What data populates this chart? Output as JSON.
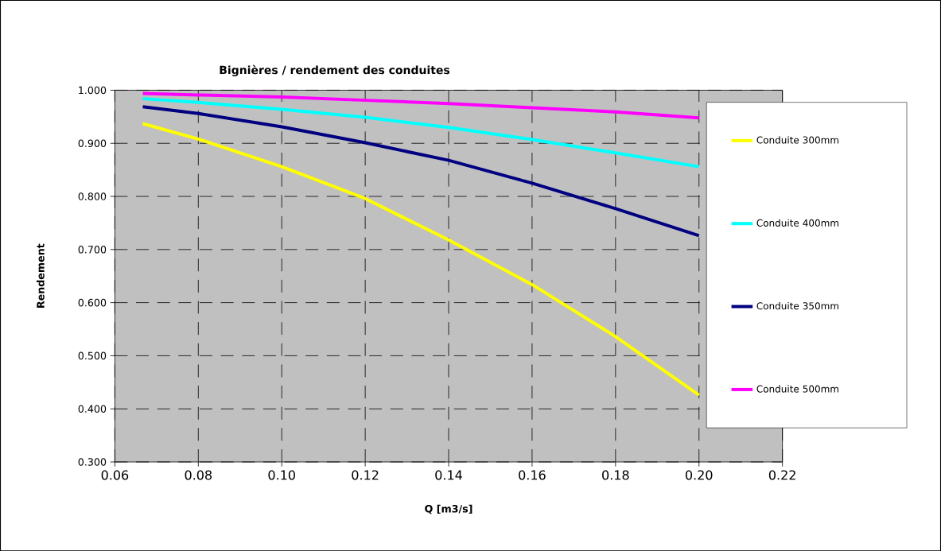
{
  "chart_data": {
    "type": "line",
    "title": "Bignières / rendement des conduites",
    "xlabel": "Q [m3/s]",
    "ylabel": "Rendement",
    "x": [
      0.0667,
      0.08,
      0.1,
      0.12,
      0.14,
      0.16,
      0.18,
      0.2
    ],
    "series": [
      {
        "name": "Conduite 300mm",
        "color": "#ffff00",
        "values": [
          0.937,
          0.908,
          0.856,
          0.796,
          0.718,
          0.634,
          0.536,
          0.426
        ]
      },
      {
        "name": "Conduite 400mm",
        "color": "#00ffff",
        "values": [
          0.984,
          0.977,
          0.964,
          0.949,
          0.93,
          0.907,
          0.882,
          0.856
        ]
      },
      {
        "name": "Conduite 350mm",
        "color": "#000080",
        "values": [
          0.969,
          0.956,
          0.931,
          0.901,
          0.868,
          0.825,
          0.777,
          0.726
        ]
      },
      {
        "name": "Conduite 500mm",
        "color": "#ff00ff",
        "values": [
          0.994,
          0.991,
          0.987,
          0.981,
          0.975,
          0.967,
          0.959,
          0.948
        ]
      }
    ],
    "xlim": [
      0.06,
      0.22
    ],
    "ylim": [
      0.3,
      1.0
    ],
    "xticks": [
      0.06,
      0.08,
      {
        "value": 0.1,
        "label": "0.10"
      },
      0.12,
      0.14,
      0.16,
      0.18,
      {
        "value": 0.2,
        "label": "0.20"
      },
      0.22
    ],
    "yticks": [
      {
        "value": 0.3,
        "label": "0.300"
      },
      {
        "value": 0.4,
        "label": "0.400"
      },
      {
        "value": 0.5,
        "label": "0.500"
      },
      {
        "value": 0.6,
        "label": "0.600"
      },
      {
        "value": 0.7,
        "label": "0.700"
      },
      {
        "value": 0.8,
        "label": "0.800"
      },
      {
        "value": 0.9,
        "label": "0.900"
      },
      {
        "value": 1.0,
        "label": "1.000"
      }
    ],
    "grid": true,
    "legend": "right",
    "marker": "none",
    "line_style": "solid"
  }
}
